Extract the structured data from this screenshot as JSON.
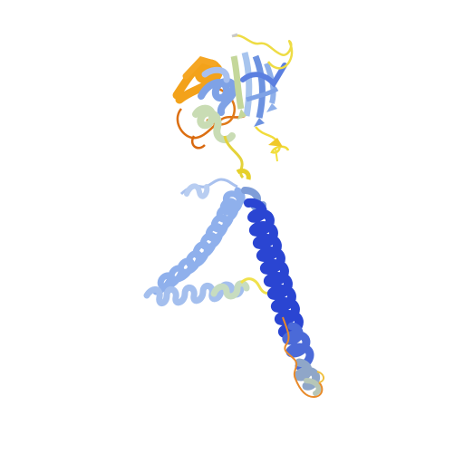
{
  "scene": {
    "subject": "protein-ribbon-structure",
    "background_color": "#ffffff",
    "palette": {
      "very_high_confidence": "#1f3ccf",
      "confident": "#5b7fe0",
      "light_blue": "#9db8ee",
      "pale_green": "#cfe0c0",
      "low_confidence": "#f0e060",
      "very_low_confidence": "#f59a20",
      "orange_dark": "#e07a18"
    }
  }
}
